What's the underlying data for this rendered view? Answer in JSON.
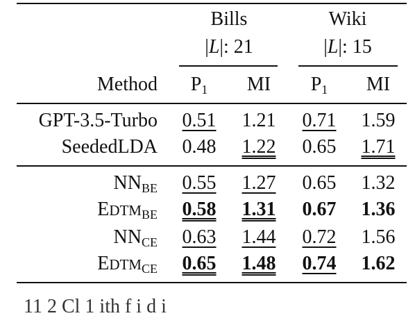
{
  "header": {
    "datasets": [
      {
        "name": "Bills",
        "labels_prefix": "|",
        "labels_var": "L",
        "labels_suffix": "|: 21"
      },
      {
        "name": "Wiki",
        "labels_prefix": "|",
        "labels_var": "L",
        "labels_suffix": "|: 15"
      }
    ],
    "method_label": "Method",
    "metric_p1_base": "P",
    "metric_p1_sub": "1",
    "metric_mi": "MI"
  },
  "rows": [
    {
      "method": "GPT-3.5-Turbo",
      "bills_p1": "0.51",
      "bills_mi": "1.21",
      "wiki_p1": "0.71",
      "wiki_mi": "1.59"
    },
    {
      "method": "SeededLDA",
      "bills_p1": "0.48",
      "bills_mi": "1.22",
      "wiki_p1": "0.65",
      "wiki_mi": "1.71"
    },
    {
      "method_base": "NN",
      "method_sub": "BE",
      "bills_p1": "0.55",
      "bills_mi": "1.27",
      "wiki_p1": "0.65",
      "wiki_mi": "1.32"
    },
    {
      "method_e": "E",
      "method_rest": "DTM",
      "method_sub": "BE",
      "bills_p1": "0.58",
      "bills_mi": "1.31",
      "wiki_p1": "0.67",
      "wiki_mi": "1.36"
    },
    {
      "method_base": "NN",
      "method_sub": "CE",
      "bills_p1": "0.63",
      "bills_mi": "1.44",
      "wiki_p1": "0.72",
      "wiki_mi": "1.56"
    },
    {
      "method_e": "E",
      "method_rest": "DTM",
      "method_sub": "CE",
      "bills_p1": "0.65",
      "bills_mi": "1.48",
      "wiki_p1": "0.74",
      "wiki_mi": "1.62"
    }
  ],
  "caption_fragment": "11 2   Cl         1    ith  f           i   d        i"
}
